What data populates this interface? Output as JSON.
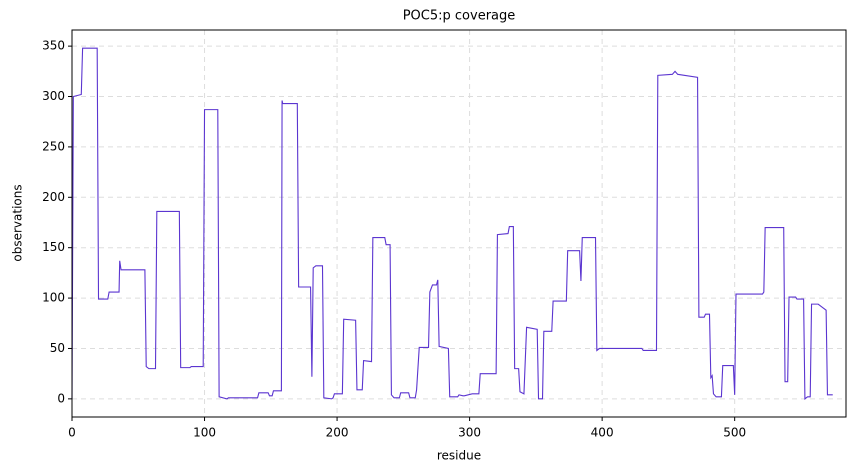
{
  "chart_data": {
    "type": "line",
    "title": "POC5:p coverage",
    "xlabel": "residue",
    "ylabel": "observations",
    "x": [
      0,
      1,
      7,
      8,
      19,
      20,
      27,
      28,
      35.5,
      36,
      37,
      55,
      56,
      58,
      63,
      64,
      81,
      82,
      89,
      90,
      99,
      100,
      110,
      111,
      117,
      118,
      140,
      141,
      148,
      149,
      151,
      152,
      158,
      158.5,
      159,
      170,
      171,
      180,
      181,
      182,
      184,
      189,
      190,
      196,
      197,
      198,
      204,
      205,
      214,
      215,
      219,
      220,
      226,
      227,
      236,
      237,
      240,
      241,
      243,
      247,
      248,
      254,
      255,
      259,
      260,
      262,
      269,
      270,
      272,
      275,
      276,
      277,
      284,
      285,
      291,
      292,
      295,
      296,
      302,
      307,
      308,
      320,
      321,
      329,
      330,
      333,
      334,
      337,
      338,
      341,
      343,
      351,
      352,
      355,
      356,
      362,
      363,
      373,
      374,
      383,
      384,
      385,
      395,
      396,
      398,
      430,
      431,
      441,
      442,
      453,
      455,
      457,
      472,
      473,
      477,
      478,
      481,
      482,
      483,
      484,
      486,
      490,
      491,
      499,
      500,
      501,
      521,
      522,
      523,
      537,
      538,
      540,
      541,
      546,
      547,
      552,
      553,
      555,
      557,
      558,
      563,
      566,
      569,
      570,
      574
    ],
    "values": [
      0,
      300,
      302,
      348,
      348,
      99,
      99,
      106,
      106,
      137,
      128,
      128,
      32,
      30,
      30,
      186,
      186,
      31,
      31,
      32,
      32,
      287,
      287,
      2,
      0,
      1,
      1,
      6,
      6,
      3,
      3,
      8,
      8,
      296,
      293,
      293,
      111,
      111,
      22,
      130,
      132,
      132,
      1,
      0,
      1,
      5,
      5,
      79,
      78,
      9,
      9,
      38,
      37,
      160,
      160,
      153,
      153,
      4,
      1,
      1,
      6,
      6,
      1,
      1,
      9,
      51,
      51,
      106,
      113,
      113,
      118,
      52,
      50,
      2,
      2,
      4,
      3,
      3,
      5,
      5,
      25,
      25,
      163,
      164,
      171,
      171,
      30,
      30,
      7,
      5,
      71,
      69,
      0,
      0,
      67,
      67,
      97,
      97,
      147,
      147,
      117,
      160,
      160,
      48,
      50,
      50,
      48,
      48,
      321,
      322,
      325,
      322,
      319,
      81,
      81,
      84,
      84,
      21,
      23,
      5,
      2,
      2,
      33,
      33,
      4,
      104,
      104,
      106,
      170,
      170,
      17,
      17,
      101,
      101,
      99,
      99,
      0,
      2,
      2,
      94,
      94,
      91,
      88,
      4,
      4
    ],
    "color": "#5b35d0",
    "xlim": [
      0,
      584
    ],
    "ylim": [
      -18,
      366
    ],
    "xticks": [
      0,
      100,
      200,
      300,
      400,
      500
    ],
    "yticks": [
      0,
      50,
      100,
      150,
      200,
      250,
      300,
      350
    ],
    "grid": true
  }
}
